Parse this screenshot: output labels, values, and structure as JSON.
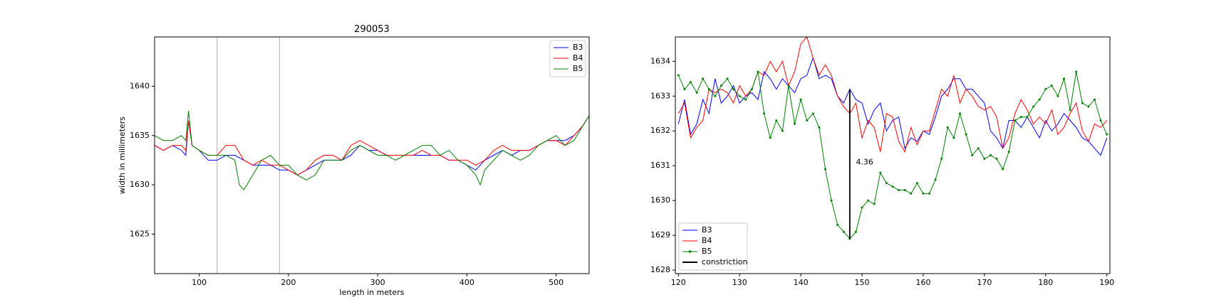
{
  "chart_data": [
    {
      "type": "line",
      "title": "290053",
      "xlabel": "length in meters",
      "ylabel": "width in millimeters",
      "xlim": [
        50,
        537
      ],
      "ylim": [
        1621,
        1645
      ],
      "xticks": [
        100,
        200,
        300,
        400,
        500
      ],
      "yticks": [
        1625,
        1630,
        1635,
        1640
      ],
      "vlines": [
        120,
        190
      ],
      "legend_position": "upper right",
      "grid": false,
      "series": [
        {
          "name": "B3",
          "color": "#0000ff",
          "x": [
            50,
            60,
            70,
            80,
            85,
            88,
            92,
            100,
            110,
            120,
            130,
            140,
            150,
            160,
            170,
            180,
            190,
            200,
            210,
            220,
            230,
            240,
            250,
            260,
            270,
            280,
            290,
            300,
            310,
            320,
            330,
            340,
            350,
            360,
            370,
            380,
            390,
            400,
            410,
            420,
            430,
            440,
            450,
            460,
            470,
            480,
            490,
            500,
            510,
            520,
            530,
            537
          ],
          "y": [
            1634,
            1633.5,
            1634,
            1633.5,
            1633,
            1636.5,
            1634,
            1633.5,
            1632.5,
            1632.5,
            1633,
            1633,
            1632.5,
            1632,
            1632,
            1632,
            1631.5,
            1631.5,
            1631,
            1631.5,
            1632,
            1632.5,
            1632.5,
            1632.5,
            1633,
            1634,
            1633.5,
            1633.5,
            1633,
            1633,
            1633,
            1633,
            1633,
            1633,
            1633,
            1632.5,
            1632.5,
            1632,
            1631.5,
            1632.5,
            1633,
            1633.5,
            1633,
            1633.5,
            1633.5,
            1634,
            1634.5,
            1634.5,
            1634.5,
            1635,
            1636,
            1637
          ]
        },
        {
          "name": "B4",
          "color": "#ff0000",
          "x": [
            50,
            60,
            70,
            80,
            85,
            88,
            92,
            100,
            110,
            120,
            130,
            140,
            150,
            160,
            170,
            180,
            190,
            200,
            210,
            220,
            230,
            240,
            250,
            260,
            270,
            280,
            290,
            300,
            310,
            320,
            330,
            340,
            350,
            360,
            370,
            380,
            390,
            400,
            410,
            420,
            430,
            440,
            450,
            460,
            470,
            480,
            490,
            500,
            510,
            520,
            530,
            537
          ],
          "y": [
            1634,
            1633.5,
            1634,
            1634,
            1633.5,
            1636.5,
            1634,
            1633.5,
            1633,
            1633,
            1634,
            1634,
            1632.5,
            1632,
            1632.5,
            1632,
            1632,
            1631.5,
            1631,
            1631.5,
            1632.5,
            1633,
            1633,
            1632.5,
            1634,
            1634.5,
            1634,
            1633.5,
            1633,
            1633,
            1633,
            1633,
            1633.5,
            1633,
            1633,
            1632.5,
            1632.5,
            1632.5,
            1632,
            1632.5,
            1633.5,
            1634,
            1633.5,
            1633.5,
            1633.5,
            1634,
            1634.5,
            1634.5,
            1634,
            1635,
            1636,
            1637
          ]
        },
        {
          "name": "B5",
          "color": "#008000",
          "x": [
            50,
            60,
            70,
            80,
            85,
            88,
            92,
            100,
            110,
            120,
            130,
            140,
            145,
            150,
            160,
            170,
            180,
            190,
            200,
            210,
            220,
            230,
            240,
            250,
            260,
            270,
            280,
            290,
            300,
            310,
            320,
            330,
            340,
            350,
            360,
            370,
            380,
            390,
            400,
            410,
            415,
            420,
            430,
            440,
            450,
            460,
            470,
            480,
            490,
            500,
            510,
            520,
            530,
            537
          ],
          "y": [
            1635,
            1634.5,
            1634.5,
            1635,
            1634.5,
            1637.5,
            1634,
            1633.5,
            1633,
            1633,
            1633,
            1632.5,
            1630,
            1629.5,
            1631,
            1632.5,
            1633,
            1632,
            1632,
            1631,
            1630.5,
            1631,
            1632.5,
            1632.5,
            1632.5,
            1633.5,
            1634,
            1633.5,
            1633,
            1633,
            1632.5,
            1633,
            1633.5,
            1634,
            1634,
            1633,
            1633.5,
            1632.5,
            1632,
            1631,
            1630,
            1631.5,
            1632.5,
            1633.5,
            1633,
            1632.5,
            1633,
            1634,
            1634.5,
            1635,
            1634,
            1634.5,
            1636,
            1637
          ]
        }
      ]
    },
    {
      "type": "line",
      "title": "",
      "xlabel": "",
      "ylabel": "",
      "xlim": [
        119.5,
        190.5
      ],
      "ylim": [
        1627.9,
        1634.7
      ],
      "xticks": [
        120,
        130,
        140,
        150,
        160,
        170,
        180,
        190
      ],
      "yticks": [
        1628,
        1629,
        1630,
        1631,
        1632,
        1633,
        1634
      ],
      "legend_position": "lower left",
      "grid": false,
      "annotation": {
        "text": "4.36",
        "x": 149,
        "y": 1631.1
      },
      "constriction": {
        "name": "constriction",
        "x": 148,
        "y1": 1628.9,
        "y2": 1633.2,
        "color": "#000000"
      },
      "series": [
        {
          "name": "B3",
          "color": "#0000ff",
          "marker": false,
          "x": [
            120,
            121,
            122,
            123,
            124,
            125,
            126,
            127,
            128,
            129,
            130,
            131,
            132,
            133,
            134,
            135,
            136,
            137,
            138,
            139,
            140,
            141,
            142,
            143,
            144,
            145,
            146,
            147,
            148,
            149,
            150,
            151,
            152,
            153,
            154,
            155,
            156,
            157,
            158,
            159,
            160,
            161,
            162,
            163,
            164,
            165,
            166,
            167,
            168,
            169,
            170,
            171,
            172,
            173,
            174,
            175,
            176,
            177,
            178,
            179,
            180,
            181,
            182,
            183,
            184,
            185,
            186,
            187,
            188,
            189,
            190
          ],
          "y": [
            1632.2,
            1632.9,
            1631.9,
            1632.2,
            1632.9,
            1632.5,
            1633.5,
            1632.8,
            1633,
            1633.3,
            1632.8,
            1633,
            1633.1,
            1632.9,
            1633.7,
            1633.5,
            1633.2,
            1633.5,
            1633.3,
            1633.1,
            1633.5,
            1633.6,
            1634.1,
            1633.5,
            1633.6,
            1633.5,
            1633,
            1632.8,
            1633.2,
            1632.9,
            1632.8,
            1632.2,
            1632.6,
            1632.8,
            1632,
            1632.3,
            1632.4,
            1631.5,
            1631.8,
            1631.7,
            1632,
            1631.9,
            1632.4,
            1633,
            1633.2,
            1633.5,
            1633.5,
            1633.2,
            1633.2,
            1633,
            1632.8,
            1632,
            1631.8,
            1631.5,
            1632.3,
            1632.3,
            1632.1,
            1632.4,
            1632.1,
            1631.8,
            1632.3,
            1632,
            1632.2,
            1632.5,
            1632.3,
            1632.1,
            1631.8,
            1631.7,
            1631.5,
            1631.3,
            1631.8
          ]
        },
        {
          "name": "B4",
          "color": "#ff0000",
          "marker": false,
          "x": [
            120,
            121,
            122,
            123,
            124,
            125,
            126,
            127,
            128,
            129,
            130,
            131,
            132,
            133,
            134,
            135,
            136,
            137,
            138,
            139,
            140,
            141,
            142,
            143,
            144,
            145,
            146,
            147,
            148,
            149,
            150,
            151,
            152,
            153,
            154,
            155,
            156,
            157,
            158,
            159,
            160,
            161,
            162,
            163,
            164,
            165,
            166,
            167,
            168,
            169,
            170,
            171,
            172,
            173,
            174,
            175,
            176,
            177,
            178,
            179,
            180,
            181,
            182,
            183,
            184,
            185,
            186,
            187,
            188,
            189,
            190
          ],
          "y": [
            1632.5,
            1632.8,
            1631.8,
            1632.1,
            1632.3,
            1633.2,
            1633.1,
            1633.2,
            1633.1,
            1632.8,
            1633.3,
            1633,
            1633.2,
            1633.7,
            1633.6,
            1634,
            1633.7,
            1634,
            1633.3,
            1633.7,
            1634.5,
            1634.7,
            1634.1,
            1633.6,
            1633.9,
            1633.6,
            1633,
            1632.7,
            1632.5,
            1632.8,
            1631.8,
            1632.3,
            1632.1,
            1631.4,
            1632.5,
            1632.4,
            1631.7,
            1631.4,
            1632.1,
            1631.6,
            1632,
            1632,
            1632.6,
            1633.2,
            1633,
            1633.6,
            1632.8,
            1633.2,
            1633,
            1632.7,
            1632.6,
            1632.7,
            1632.4,
            1631.5,
            1631.8,
            1632.5,
            1632.9,
            1632.6,
            1632.2,
            1632.4,
            1632.2,
            1632.6,
            1631.9,
            1632.1,
            1632.5,
            1632.8,
            1632,
            1631.7,
            1632.2,
            1632.1,
            1632.3
          ]
        },
        {
          "name": "B5",
          "color": "#008000",
          "marker": true,
          "x": [
            120,
            121,
            122,
            123,
            124,
            125,
            126,
            127,
            128,
            129,
            130,
            131,
            132,
            133,
            134,
            135,
            136,
            137,
            138,
            139,
            140,
            141,
            142,
            143,
            144,
            145,
            146,
            147,
            148,
            149,
            150,
            151,
            152,
            153,
            154,
            155,
            156,
            157,
            158,
            159,
            160,
            161,
            162,
            163,
            164,
            165,
            166,
            167,
            168,
            169,
            170,
            171,
            172,
            173,
            174,
            175,
            176,
            177,
            178,
            179,
            180,
            181,
            182,
            183,
            184,
            185,
            186,
            187,
            188,
            189,
            190
          ],
          "y": [
            1633.6,
            1633.2,
            1633.4,
            1633.1,
            1633.5,
            1633.2,
            1633,
            1633.3,
            1633.5,
            1633.2,
            1633,
            1632.9,
            1633.2,
            1633.7,
            1632.5,
            1631.8,
            1632.3,
            1632,
            1633.3,
            1632.2,
            1632.9,
            1632.3,
            1632.5,
            1632.1,
            1630.9,
            1630,
            1629.3,
            1629.1,
            1628.9,
            1629.1,
            1629.8,
            1630,
            1629.9,
            1630.8,
            1630.5,
            1630.4,
            1630.3,
            1630.3,
            1630.2,
            1630.5,
            1630.2,
            1630.2,
            1630.6,
            1631.2,
            1632.1,
            1631.8,
            1632.5,
            1631.9,
            1631.3,
            1631.5,
            1631.2,
            1631.3,
            1631.2,
            1630.9,
            1631.4,
            1632.3,
            1632.4,
            1632.4,
            1632.7,
            1632.9,
            1633.2,
            1633.3,
            1633,
            1633.5,
            1632.6,
            1633.7,
            1632.8,
            1632.7,
            1632.9,
            1632.3,
            1631.9
          ]
        },
        {
          "name": "constriction",
          "color": "#000000",
          "marker": false,
          "x": [],
          "y": []
        }
      ]
    }
  ]
}
